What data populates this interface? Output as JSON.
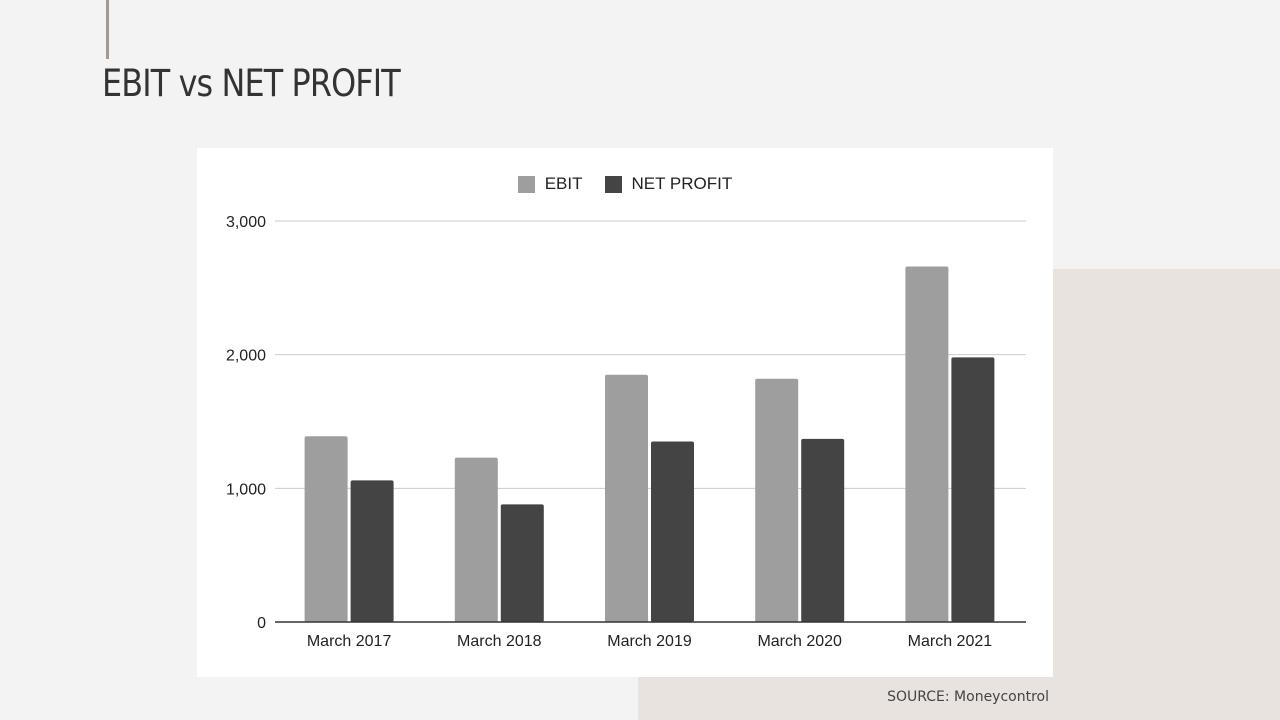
{
  "slide": {
    "title": "EBIT vs NET PROFIT",
    "source": "SOURCE: Moneycontrol"
  },
  "chart_data": {
    "type": "bar",
    "categories": [
      "March 2017",
      "March 2018",
      "March 2019",
      "March 2020",
      "March 2021"
    ],
    "series": [
      {
        "name": "EBIT",
        "color": "#9e9e9e",
        "values": [
          1390,
          1230,
          1850,
          1820,
          2660
        ]
      },
      {
        "name": "NET PROFIT",
        "color": "#444444",
        "values": [
          1060,
          880,
          1350,
          1370,
          1980
        ]
      }
    ],
    "y_ticks": [
      "0",
      "1,000",
      "2,000",
      "3,000"
    ],
    "y_tick_values": [
      0,
      1000,
      2000,
      3000
    ],
    "ylim": [
      0,
      3000
    ],
    "grid": true,
    "legend_position": "top-center"
  }
}
